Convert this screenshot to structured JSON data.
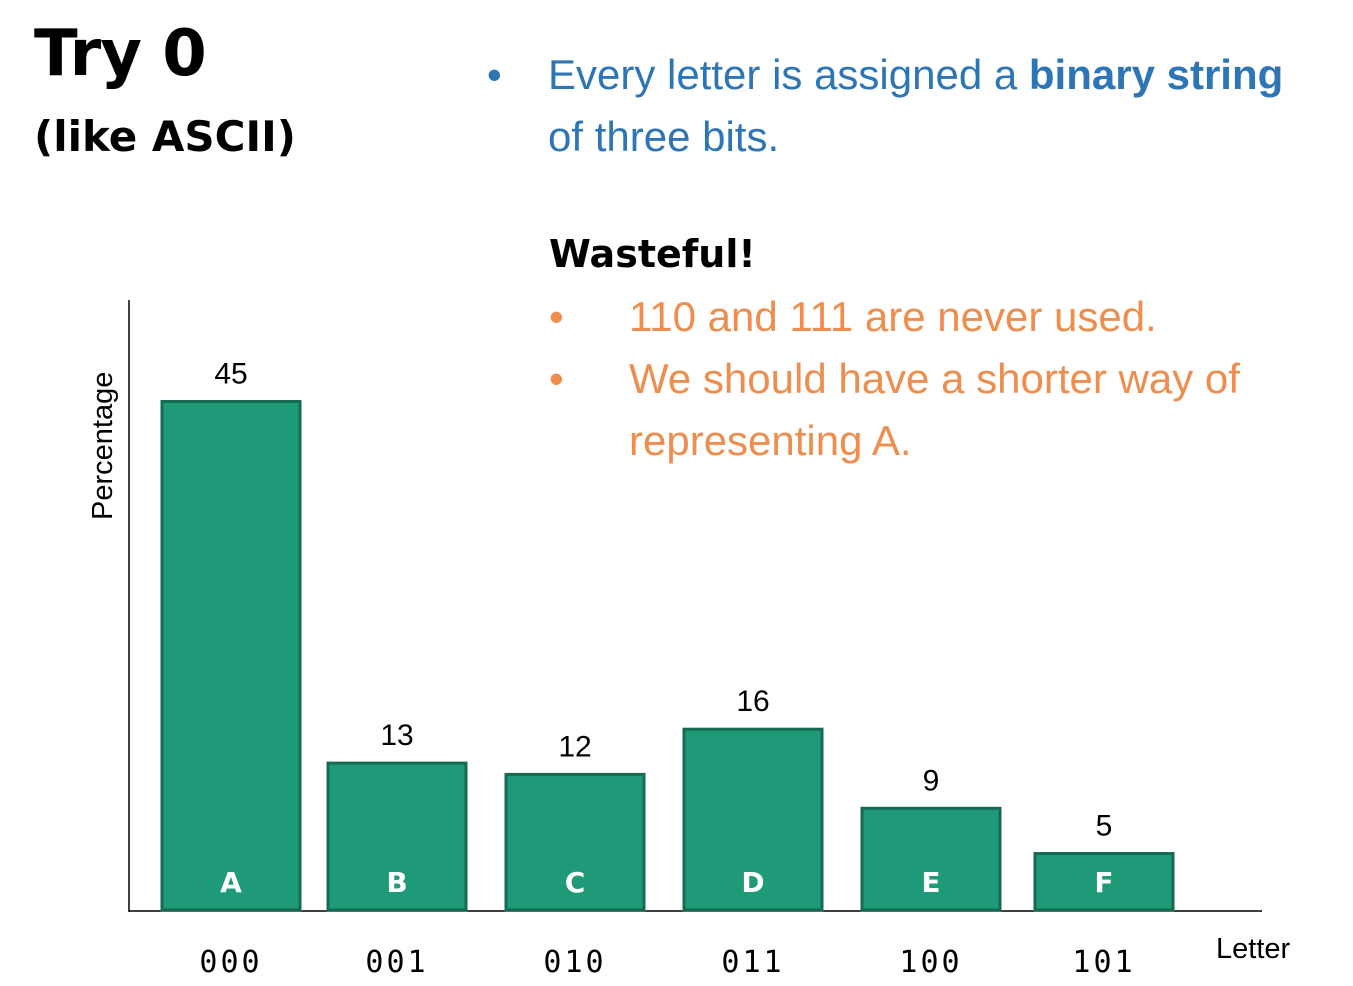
{
  "slide": {
    "title": "Try 0",
    "subtitle": "(like ASCII)",
    "blue_bullet": {
      "bullet_glyph": "•",
      "line1_prefix": "Every letter is assigned a ",
      "line1_bold": "binary string",
      "line2": "of three bits."
    },
    "wasteful_heading": "Wasteful!",
    "orange_bullets": [
      {
        "glyph": "•",
        "lines": [
          "110 and 111 are never used."
        ]
      },
      {
        "glyph": "•",
        "lines": [
          "We should have a shorter way of",
          "representing A."
        ]
      }
    ],
    "colors": {
      "blue_text": "#2E75B6",
      "orange_text": "#ED8E4F",
      "bar_fill": "#1F9A78",
      "bar_stroke": "#156B52"
    }
  },
  "chart_data": {
    "type": "bar",
    "categories": [
      "A",
      "B",
      "C",
      "D",
      "E",
      "F"
    ],
    "values": [
      45,
      13,
      12,
      16,
      9,
      5
    ],
    "codes": [
      "000",
      "001",
      "010",
      "011",
      "100",
      "101"
    ],
    "xlabel": "Letter",
    "ylabel": "Percentage",
    "ylim": [
      0,
      45
    ],
    "grid": false,
    "legend": "none"
  }
}
